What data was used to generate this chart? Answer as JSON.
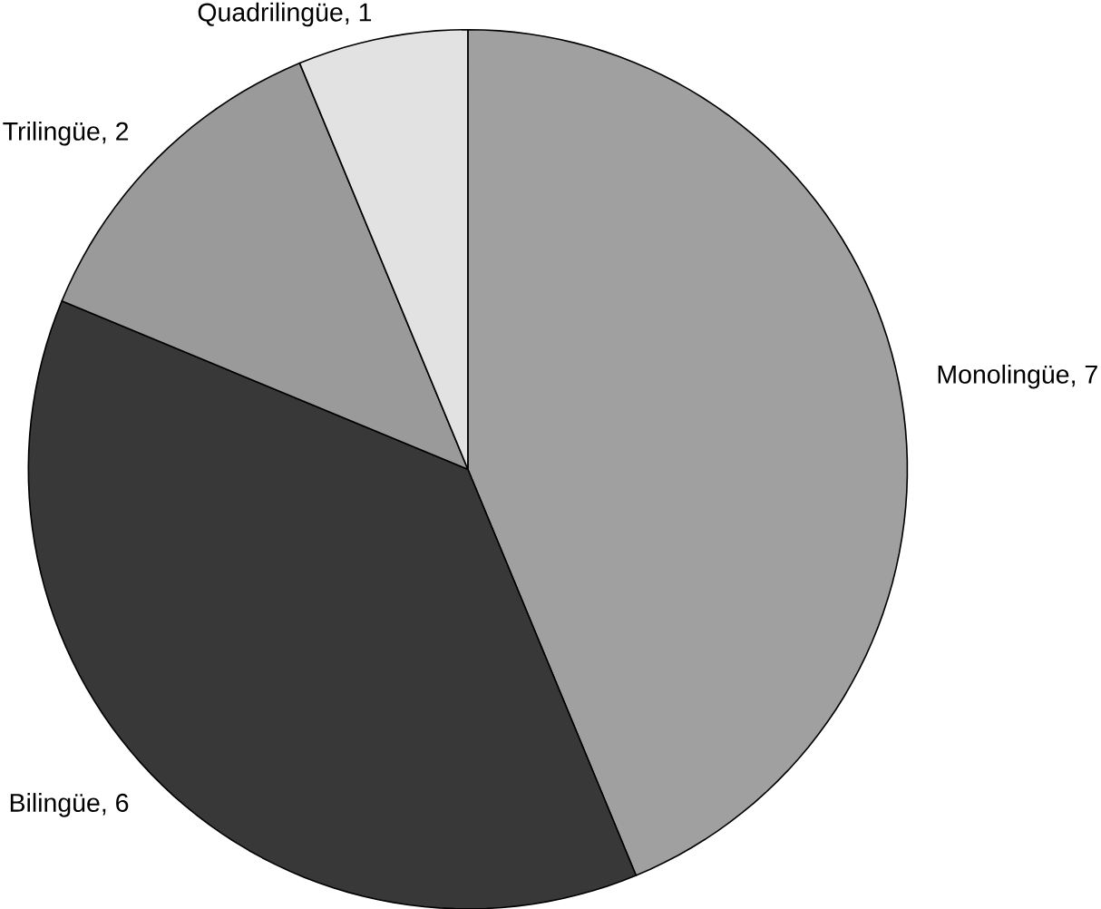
{
  "chart_data": {
    "type": "pie",
    "categories": [
      "Monolingüe",
      "Bilingüe",
      "Trilingüe",
      "Quadrilingüe"
    ],
    "values": [
      7,
      6,
      2,
      1
    ],
    "value_labels": [
      ", 7",
      ", 6",
      ", 2",
      ", 1"
    ],
    "colors": [
      "#a0a0a0",
      "#383838",
      "#9a9a9a",
      "#e2e2e2"
    ]
  }
}
